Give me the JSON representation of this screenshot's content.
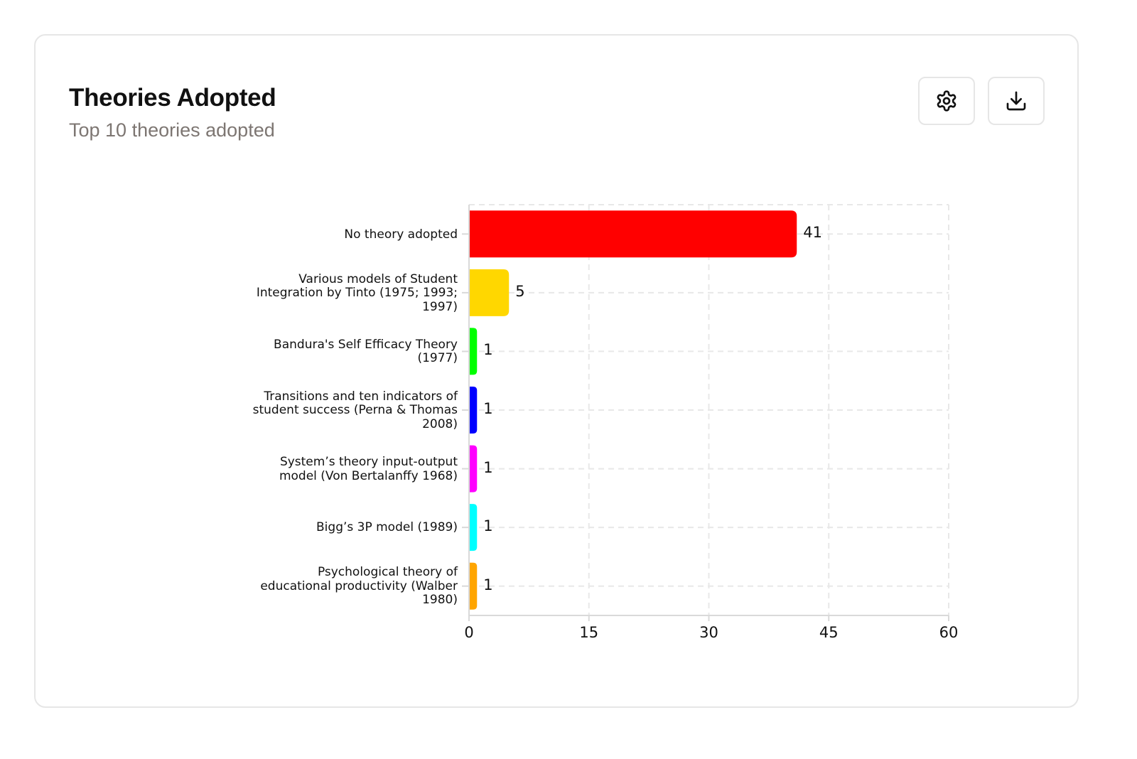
{
  "card": {
    "title": "Theories Adopted",
    "subtitle": "Top 10 theories adopted",
    "buttons": {
      "settings": {
        "icon": "gear-icon",
        "label": "Settings"
      },
      "download": {
        "icon": "download-icon",
        "label": "Download"
      }
    }
  },
  "chart_data": {
    "type": "bar",
    "orientation": "horizontal",
    "title": "Theories Adopted",
    "subtitle": "Top 10 theories adopted",
    "xlabel": "",
    "ylabel": "",
    "xlim": [
      0,
      60
    ],
    "x_ticks": [
      "0",
      "15",
      "30",
      "45",
      "60"
    ],
    "grid": true,
    "legend": null,
    "categories": [
      "No theory adopted",
      "Various models of Student Integration by Tinto (1975; 1993; 1997)",
      "Bandura's Self Efficacy Theory (1977)",
      "Transitions and ten indicators of student success (Perna & Thomas 2008)",
      "System’s theory input-output model (Von Bertalanffy 1968)",
      "Bigg’s 3P model (1989)",
      "Psychological theory of educational productivity (Walber 1980)"
    ],
    "category_display_lines": [
      "No theory adopted",
      "Various models of Student\nIntegration by Tinto (1975; 1993;\n1997)",
      "Bandura's Self Efficacy Theory\n(1977)",
      "Transitions and ten indicators of\nstudent success (Perna & Thomas\n2008)",
      "System’s theory input-output\nmodel (Von Bertalanffy 1968)",
      "Bigg’s 3P model (1989)",
      "Psychological theory of\neducational productivity (Walber\n1980)"
    ],
    "values": [
      41,
      5,
      1,
      1,
      1,
      1,
      1
    ],
    "value_labels": [
      "41",
      "5",
      "1",
      "1",
      "1",
      "1",
      "1"
    ],
    "colors": [
      "#ff0000",
      "#ffd700",
      "#00ff00",
      "#0000ff",
      "#ff00ff",
      "#00ffff",
      "#ffa500"
    ]
  }
}
